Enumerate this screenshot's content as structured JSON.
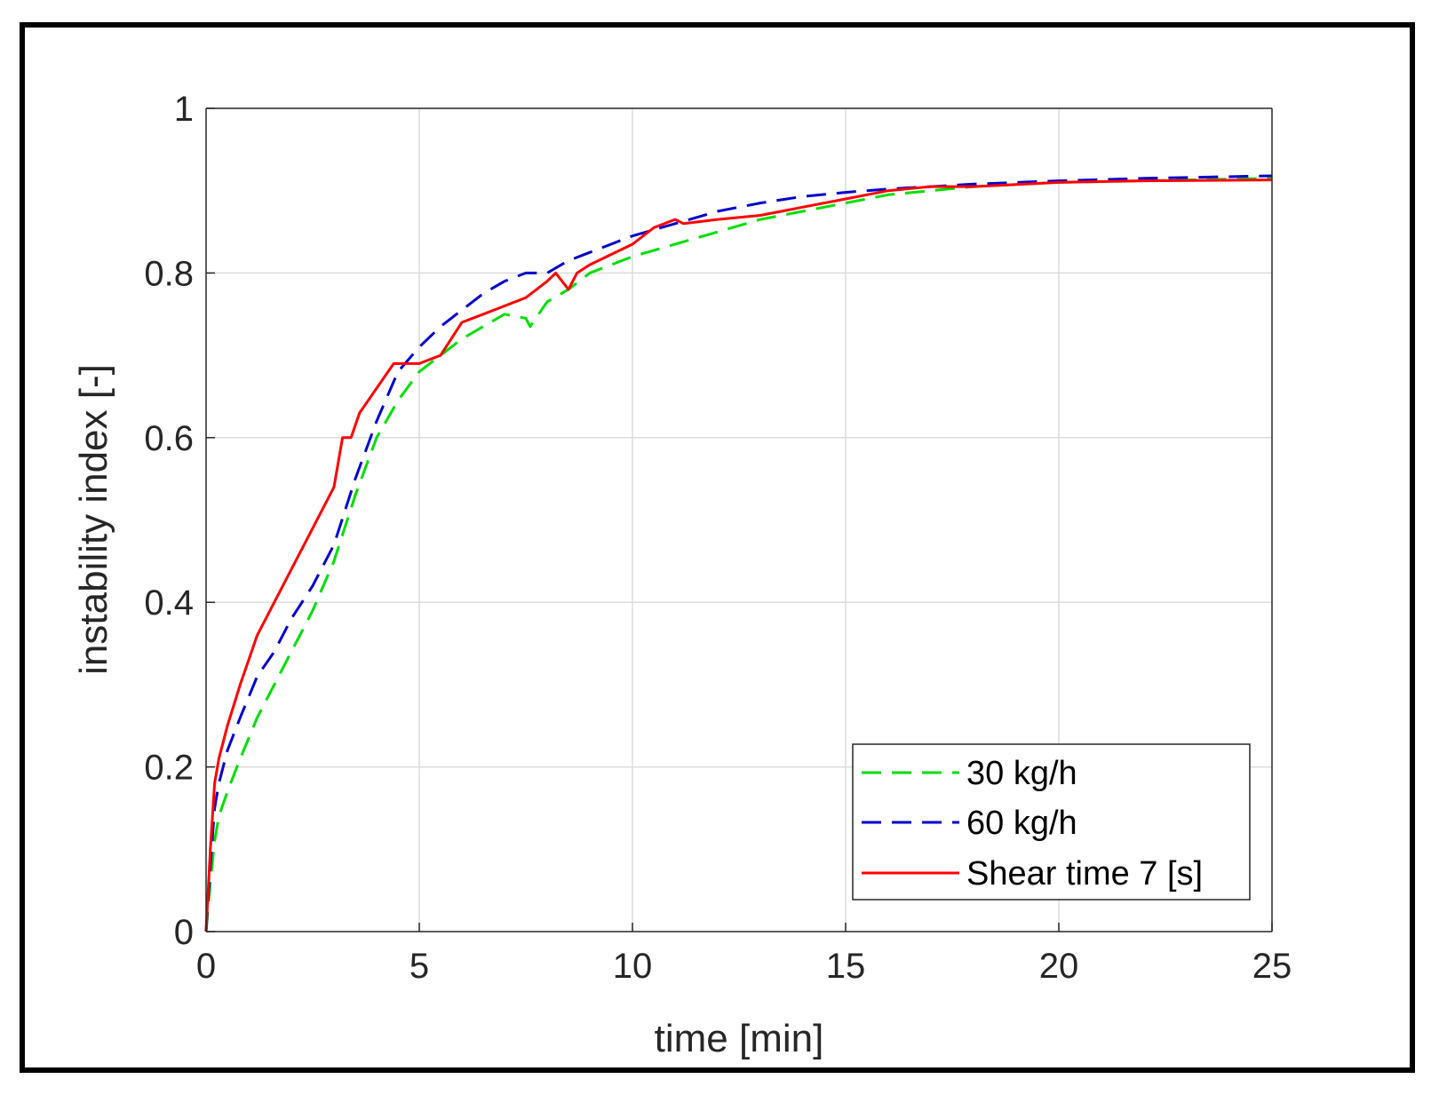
{
  "chart_data": {
    "type": "line",
    "title": "",
    "xlabel": "time [min]",
    "ylabel": "instability index [-]",
    "xlim": [
      0,
      25
    ],
    "ylim": [
      0,
      1
    ],
    "xticks": [
      0,
      5,
      10,
      15,
      20,
      25
    ],
    "yticks": [
      0,
      0.2,
      0.4,
      0.6,
      0.8,
      1
    ],
    "xtick_labels": [
      "0",
      "5",
      "10",
      "15",
      "20",
      "25"
    ],
    "ytick_labels": [
      "0",
      "0.2",
      "0.4",
      "0.6",
      "0.8",
      "1"
    ],
    "grid": true,
    "legend_position": "bottom-right",
    "series": [
      {
        "name": "30 kg/h",
        "color": "#00dd00",
        "style": "dashed",
        "x": [
          0,
          0.1,
          0.2,
          0.3,
          0.5,
          0.8,
          1.2,
          1.6,
          2.0,
          2.5,
          3.0,
          3.5,
          4.0,
          4.5,
          5.0,
          5.5,
          6.0,
          6.5,
          7.0,
          7.5,
          7.6,
          8.0,
          8.5,
          9.0,
          10.0,
          11.0,
          12.0,
          13.0,
          14.0,
          15.0,
          16.0,
          17.0,
          18.0,
          20.0,
          22.0,
          25.0
        ],
        "values": [
          0,
          0.06,
          0.11,
          0.14,
          0.17,
          0.21,
          0.26,
          0.3,
          0.34,
          0.39,
          0.45,
          0.53,
          0.6,
          0.645,
          0.68,
          0.7,
          0.72,
          0.735,
          0.75,
          0.745,
          0.735,
          0.765,
          0.78,
          0.8,
          0.82,
          0.835,
          0.85,
          0.865,
          0.875,
          0.885,
          0.895,
          0.9,
          0.905,
          0.91,
          0.912,
          0.915
        ]
      },
      {
        "name": "60 kg/h",
        "color": "#0000cc",
        "style": "dashed",
        "x": [
          0,
          0.1,
          0.2,
          0.3,
          0.5,
          0.8,
          1.2,
          1.6,
          2.0,
          2.5,
          3.0,
          3.5,
          4.0,
          4.5,
          5.0,
          5.5,
          6.0,
          6.5,
          7.0,
          7.5,
          8.0,
          8.5,
          9.0,
          10.0,
          11.0,
          12.0,
          13.0,
          14.0,
          15.0,
          16.0,
          17.0,
          18.0,
          20.0,
          22.0,
          25.0
        ],
        "values": [
          0,
          0.08,
          0.15,
          0.18,
          0.22,
          0.26,
          0.31,
          0.34,
          0.38,
          0.42,
          0.47,
          0.55,
          0.62,
          0.68,
          0.71,
          0.735,
          0.755,
          0.775,
          0.79,
          0.8,
          0.8,
          0.815,
          0.825,
          0.845,
          0.86,
          0.875,
          0.885,
          0.893,
          0.898,
          0.902,
          0.905,
          0.908,
          0.912,
          0.915,
          0.918
        ]
      },
      {
        "name": "Shear time 7 [s]",
        "color": "#ff0000",
        "style": "solid",
        "x": [
          0,
          0.1,
          0.2,
          0.3,
          0.5,
          0.8,
          1.2,
          1.6,
          2.0,
          2.5,
          3.0,
          3.2,
          3.4,
          3.6,
          4.0,
          4.4,
          5.0,
          5.5,
          6.0,
          6.5,
          7.0,
          7.5,
          8.0,
          8.2,
          8.5,
          8.7,
          9.0,
          10.0,
          10.5,
          11.0,
          11.2,
          12.0,
          13.0,
          14.0,
          15.0,
          16.0,
          17.0,
          18.0,
          20.0,
          22.0,
          25.0
        ],
        "values": [
          0,
          0.1,
          0.18,
          0.21,
          0.25,
          0.3,
          0.36,
          0.4,
          0.44,
          0.49,
          0.54,
          0.6,
          0.6,
          0.63,
          0.66,
          0.69,
          0.69,
          0.7,
          0.74,
          0.75,
          0.76,
          0.77,
          0.79,
          0.8,
          0.78,
          0.8,
          0.81,
          0.835,
          0.855,
          0.865,
          0.86,
          0.865,
          0.87,
          0.88,
          0.89,
          0.9,
          0.905,
          0.905,
          0.91,
          0.912,
          0.913
        ]
      }
    ]
  }
}
